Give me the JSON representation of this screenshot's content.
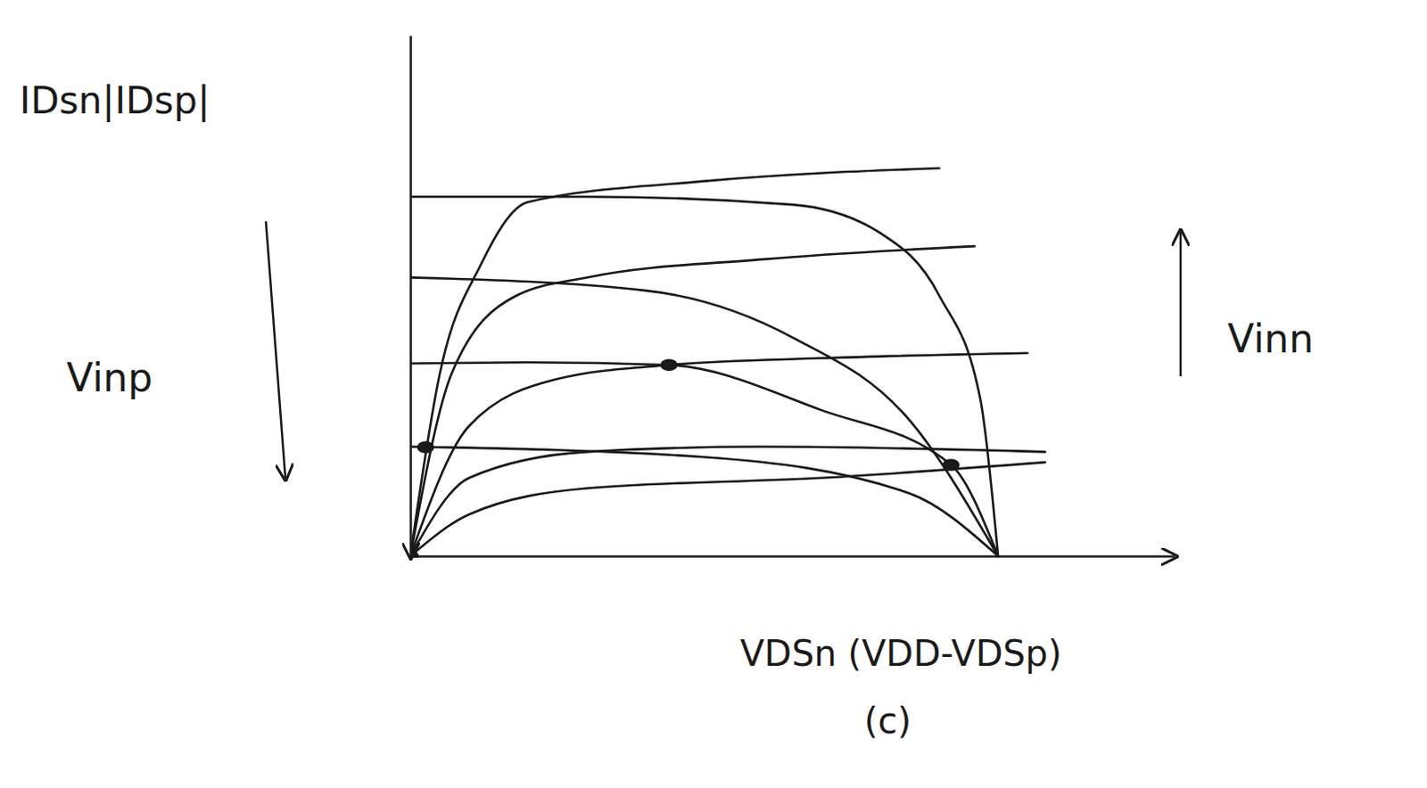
{
  "chart_data": {
    "type": "line",
    "y_label": "IDsn|IDsp|",
    "x_label": "VDSn (VDD-VDSp)",
    "annotations": [
      {
        "text": "Vinp"
      },
      {
        "text": "Vinn"
      },
      {
        "text": "(c)"
      }
    ],
    "color": "#1a1a1a",
    "xlim": [
      0,
      13
    ],
    "ylim": [
      0,
      10
    ],
    "xticks": [],
    "yticks": [],
    "tick_labels": false,
    "grid": false,
    "series": [
      {
        "type": "line",
        "x": [
          0,
          0.5,
          1.2,
          2,
          5,
          9
        ],
        "values": [
          0,
          3.5,
          5.6,
          6.8,
          7.2,
          7.45
        ]
      },
      {
        "type": "line",
        "x": [
          0,
          0.7,
          1.8,
          3,
          6,
          9.6
        ],
        "values": [
          0,
          3.5,
          5.0,
          5.35,
          5.7,
          5.95
        ]
      },
      {
        "type": "line",
        "x": [
          0,
          1,
          2.5,
          4.4,
          7,
          10.5
        ],
        "values": [
          0,
          2.5,
          3.4,
          3.67,
          3.8,
          3.9
        ]
      },
      {
        "type": "line",
        "x": [
          0,
          1,
          3,
          6,
          10.8
        ],
        "values": [
          0,
          1.5,
          2.0,
          2.1,
          2.0
        ]
      },
      {
        "type": "line",
        "x": [
          0,
          1,
          3,
          7,
          10.8
        ],
        "values": [
          0,
          0.8,
          1.3,
          1.5,
          1.8
        ]
      },
      {
        "type": "line",
        "x": [
          0,
          3,
          6.5,
          8,
          9,
          9.7,
          10
        ],
        "values": [
          6.9,
          6.9,
          6.75,
          6.2,
          5.0,
          3.0,
          0
        ]
      },
      {
        "type": "line",
        "x": [
          0,
          4,
          6.5,
          8.5,
          10
        ],
        "values": [
          5.35,
          5.1,
          4.2,
          2.6,
          0
        ]
      },
      {
        "type": "line",
        "x": [
          0,
          2,
          4.4,
          7,
          9.2,
          10
        ],
        "values": [
          3.7,
          3.72,
          3.67,
          2.8,
          1.75,
          0
        ]
      },
      {
        "type": "line",
        "x": [
          0,
          5,
          8.5,
          10
        ],
        "values": [
          2.1,
          1.9,
          1.2,
          0
        ]
      },
      {
        "type": "scatter",
        "marker": "dot",
        "x": [
          0,
          0.26,
          4.4,
          9.2
        ],
        "values": [
          0,
          2.09,
          3.67,
          1.75
        ]
      }
    ]
  }
}
